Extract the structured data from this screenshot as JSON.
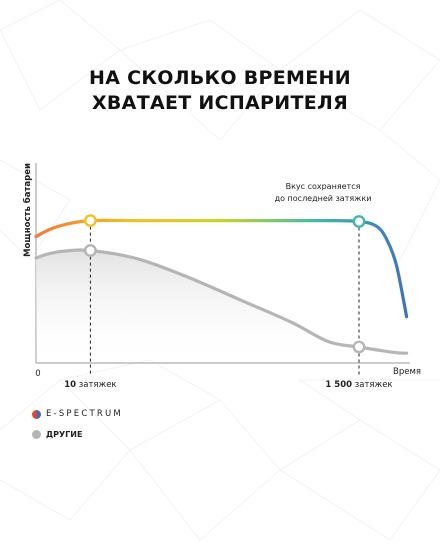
{
  "title_lines": [
    "НА СКОЛЬКО ВРЕМЕНИ",
    "ХВАТАЕТ ИСПАРИТЕЛЯ"
  ],
  "chart_data": {
    "type": "line",
    "ylabel": "Мощность батареи",
    "xlabel": "Время",
    "origin_label": "0",
    "xlim": [
      0,
      1.1
    ],
    "ylim": [
      0,
      1
    ],
    "grid": false,
    "legend_position": "bottom-left",
    "series": [
      {
        "name": "E-SPECTRUM",
        "color_stops": [
          "#f07a3c",
          "#f5c026",
          "#c6d62a",
          "#41b9a3",
          "#3d6fc0"
        ],
        "x": [
          0,
          0.04,
          0.09,
          0.16,
          0.3,
          0.5,
          0.7,
          0.86,
          0.95,
          1.0,
          1.03,
          1.06,
          1.09
        ],
        "y": [
          0.71,
          0.75,
          0.78,
          0.8,
          0.8,
          0.8,
          0.8,
          0.8,
          0.795,
          0.77,
          0.7,
          0.55,
          0.26
        ]
      },
      {
        "name": "ДРУГИЕ",
        "color": "#b5b5b5",
        "x": [
          0,
          0.04,
          0.09,
          0.16,
          0.3,
          0.45,
          0.6,
          0.75,
          0.86,
          0.95,
          1.05,
          1.09
        ],
        "y": [
          0.59,
          0.615,
          0.63,
          0.632,
          0.585,
          0.48,
          0.355,
          0.23,
          0.12,
          0.09,
          0.06,
          0.055
        ]
      }
    ],
    "markers": [
      {
        "x": 0.16,
        "label": "10 затяжек",
        "label_bold": "10",
        "label_rest": " затяжек",
        "points_y": [
          0.8,
          0.632
        ]
      },
      {
        "x": 0.95,
        "label": "1 500 затяжек",
        "label_bold": "1 500",
        "label_rest": " затяжек",
        "points_y": [
          0.795,
          0.09
        ]
      }
    ],
    "annotation": {
      "lines": [
        "Вкус сохраняется",
        "до последней затяжки"
      ]
    }
  },
  "legend": [
    {
      "label": "E-SPECTRUM",
      "colors": [
        "#e9432f",
        "#3c67c6"
      ]
    },
    {
      "label": "ДРУГИЕ",
      "colors": [
        "#b5b5b5",
        "#b5b5b5"
      ]
    }
  ]
}
